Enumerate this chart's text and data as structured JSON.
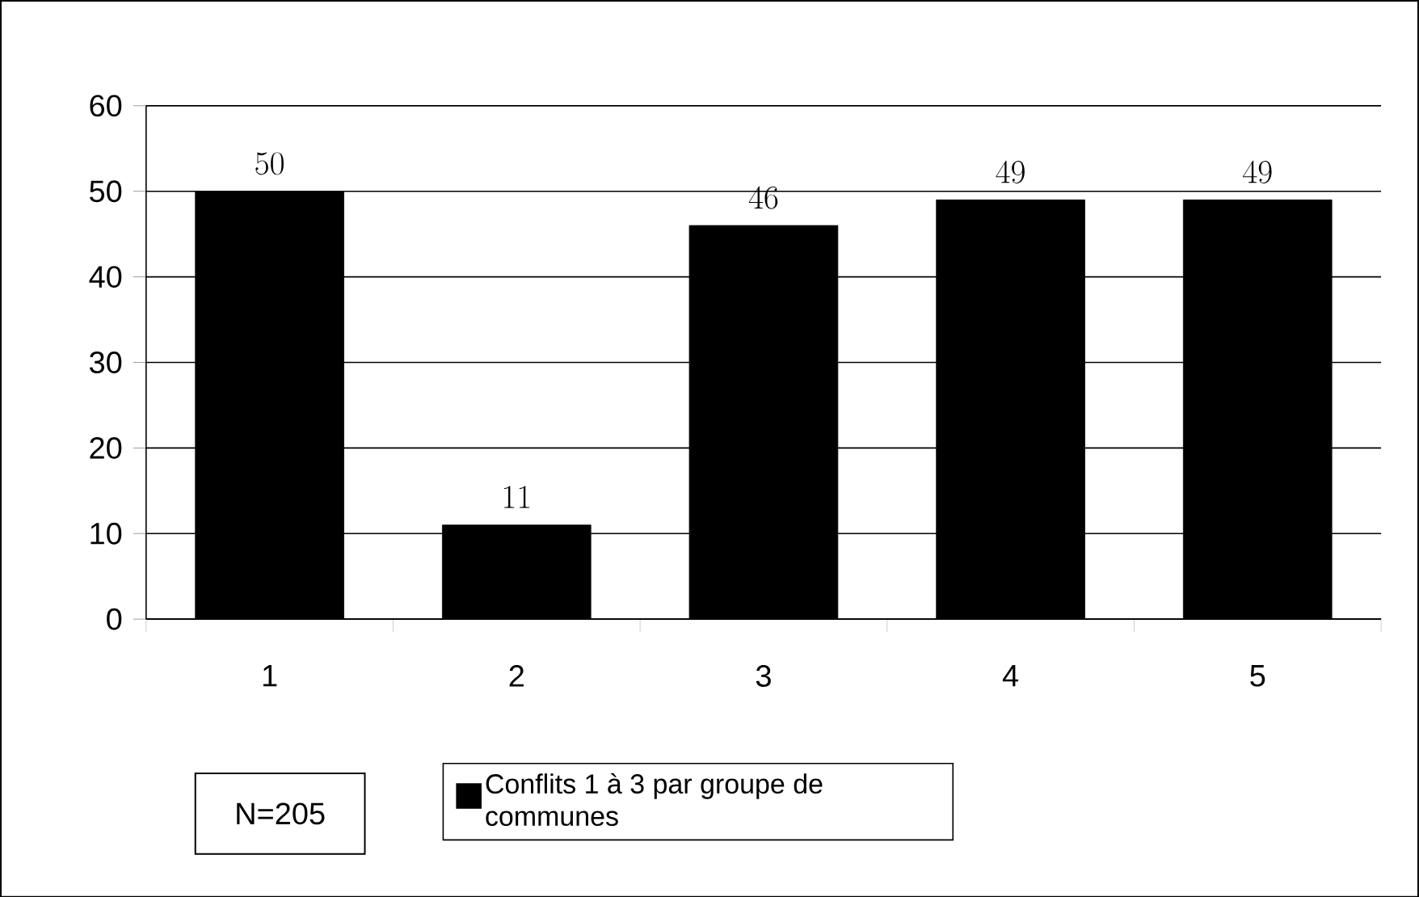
{
  "chart_data": {
    "type": "bar",
    "categories": [
      "1",
      "2",
      "3",
      "4",
      "5"
    ],
    "series": [
      {
        "name": "Conflits 1 à 3 par groupe de communes",
        "color": "#000000",
        "values": [
          50,
          11,
          46,
          49,
          49
        ]
      }
    ],
    "ylim": [
      0,
      60
    ],
    "yticks": [
      0,
      10,
      20,
      30,
      40,
      50,
      60
    ],
    "grid": "y",
    "data_labels": true,
    "legend": "bottom",
    "annotations": [
      "N=205"
    ]
  }
}
